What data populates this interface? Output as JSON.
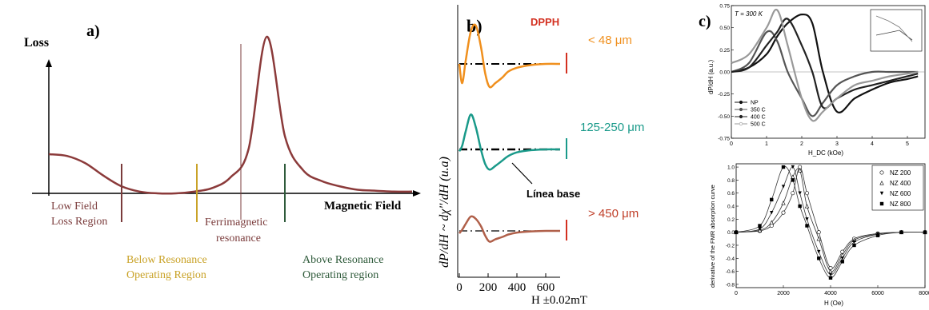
{
  "panel_a": {
    "label": "a)",
    "y_axis_label": "Loss",
    "x_axis_label": "Magnetic Field",
    "regions": {
      "low_field": [
        "Low Field",
        "Loss Region"
      ],
      "ferri": [
        "Ferrimagnetic",
        "resonance"
      ],
      "below": [
        "Below Resonance",
        "Operating Region"
      ],
      "above": [
        "Above Resonance",
        "Operating region"
      ]
    },
    "colors": {
      "curve": "#8b3a3a",
      "low_field": "#7a3b3b",
      "below": "#c9a227",
      "above": "#2e5a3a",
      "ferri": "#7a3b3b"
    }
  },
  "panel_b": {
    "label": "b)",
    "reference": "DPPH",
    "x_axis_label": "H ±0.02mT",
    "y_axis_label": "dP/dH ~ dχ''/dH (u.a)",
    "baseline_label": "Línea base",
    "x_ticks": [
      "0",
      "200",
      "400",
      "600"
    ],
    "colors": {
      "s1": "#f0901e",
      "s2": "#1a9a8a",
      "s3": "#b0604a",
      "dpph": "#d33020"
    }
  },
  "panel_c": {
    "label": "c)"
  },
  "chart_data": [
    {
      "type": "line",
      "title": "",
      "xlabel": "Magnetic Field",
      "ylabel": "Loss",
      "x": [
        0.0,
        0.05,
        0.1,
        0.15,
        0.2,
        0.25,
        0.3,
        0.35,
        0.4,
        0.45,
        0.5,
        0.55,
        0.6,
        0.65,
        0.7,
        0.75,
        0.8,
        0.85,
        0.9,
        0.95,
        1.0
      ],
      "series": [
        {
          "values": [
            0.22,
            0.21,
            0.17,
            0.1,
            0.04,
            0.01,
            0.0,
            0.0,
            0.01,
            0.03,
            0.09,
            0.25,
            0.88,
            0.32,
            0.13,
            0.07,
            0.04,
            0.02,
            0.015,
            0.01,
            0.01
          ]
        }
      ]
    },
    {
      "type": "line",
      "title": "",
      "xlabel": "H ±0.02mT",
      "ylabel": "dP/dH ~ dχ''/dH (u.a)",
      "xlim": [
        0,
        700
      ],
      "x": [
        0,
        20,
        45,
        80,
        115,
        150,
        180,
        210,
        250,
        300,
        340,
        400,
        500,
        600,
        700
      ],
      "series": [
        {
          "name": "< 48 μm",
          "values": [
            0.0,
            -0.5,
            0.1,
            0.85,
            1.0,
            0.45,
            -0.25,
            -0.6,
            -0.5,
            -0.35,
            -0.2,
            -0.1,
            -0.03,
            0.0,
            0.0
          ]
        },
        {
          "name": "125-250 μm",
          "values": [
            -0.05,
            0.1,
            0.5,
            0.95,
            0.6,
            0.0,
            -0.4,
            -0.55,
            -0.45,
            -0.3,
            -0.18,
            -0.08,
            -0.02,
            0.0,
            0.0
          ]
        },
        {
          "name": "> 450 μm",
          "values": [
            -0.1,
            0.05,
            0.3,
            0.6,
            0.5,
            0.2,
            -0.2,
            -0.45,
            -0.35,
            -0.25,
            -0.15,
            -0.07,
            -0.02,
            0.0,
            0.0
          ]
        }
      ]
    },
    {
      "type": "line",
      "title": "",
      "xlabel": "H_DC (kOe)",
      "ylabel": "dP/dH (a.u.)",
      "annotation": "T = 300 K",
      "xlim": [
        0,
        5.5
      ],
      "ylim": [
        -0.75,
        0.75
      ],
      "x_ticks": [
        "0",
        "1",
        "2",
        "3",
        "4",
        "5"
      ],
      "y_ticks": [
        "0.75",
        "0.50",
        "0.25",
        "0.00",
        "-0.25",
        "-0.50",
        "-0.75"
      ],
      "x": [
        0.0,
        0.5,
        1.0,
        1.3,
        1.6,
        2.0,
        2.3,
        2.6,
        3.0,
        3.5,
        4.0,
        4.5,
        5.0,
        5.3
      ],
      "series": [
        {
          "name": "NP",
          "values": [
            0.0,
            0.05,
            0.2,
            0.4,
            0.55,
            0.65,
            0.55,
            0.0,
            -0.45,
            -0.3,
            -0.2,
            -0.12,
            -0.08,
            -0.05
          ]
        },
        {
          "name": "350 C",
          "values": [
            0.0,
            0.1,
            0.45,
            0.35,
            0.0,
            -0.3,
            -0.5,
            -0.35,
            -0.15,
            -0.05,
            0.0,
            0.0,
            0.0,
            0.0
          ]
        },
        {
          "name": "400 C",
          "values": [
            0.0,
            0.05,
            0.3,
            0.45,
            0.6,
            0.3,
            0.0,
            -0.4,
            -0.3,
            -0.2,
            -0.15,
            -0.1,
            -0.05,
            -0.02
          ]
        },
        {
          "name": "500 C",
          "values": [
            0.1,
            0.2,
            0.5,
            0.7,
            0.3,
            -0.3,
            -0.55,
            -0.45,
            -0.3,
            -0.15,
            -0.1,
            -0.05,
            -0.02,
            0.0
          ]
        }
      ]
    },
    {
      "type": "line",
      "title": "",
      "xlabel": "H (Oe)",
      "ylabel": "derivative of the FMR absorption curve",
      "xlim": [
        0,
        8000
      ],
      "ylim": [
        -0.8,
        1.0
      ],
      "x_ticks": [
        "0",
        "2000",
        "4000",
        "6000",
        "8000"
      ],
      "y_ticks": [
        "1.0",
        "0.8",
        "0.6",
        "0.4",
        "0.2",
        "0.0",
        "-0.2",
        "-0.4",
        "-0.6",
        "-0.8"
      ],
      "x": [
        0,
        1000,
        1500,
        2000,
        2400,
        2700,
        3000,
        3500,
        4000,
        4500,
        5000,
        6000,
        7000,
        8000
      ],
      "series": [
        {
          "name": "NZ 200",
          "values": [
            0.0,
            0.02,
            0.1,
            0.3,
            0.6,
            1.0,
            0.6,
            0.0,
            -0.55,
            -0.3,
            -0.1,
            -0.02,
            0.0,
            0.0
          ]
        },
        {
          "name": "NZ 400",
          "values": [
            0.0,
            0.03,
            0.15,
            0.45,
            0.85,
            0.95,
            0.4,
            -0.1,
            -0.6,
            -0.35,
            -0.12,
            -0.03,
            0.0,
            0.0
          ]
        },
        {
          "name": "NZ 600",
          "values": [
            0.0,
            0.05,
            0.3,
            0.7,
            1.0,
            0.6,
            0.2,
            -0.3,
            -0.65,
            -0.4,
            -0.15,
            -0.03,
            0.0,
            0.0
          ]
        },
        {
          "name": "NZ 800",
          "values": [
            0.0,
            0.1,
            0.5,
            1.0,
            0.8,
            0.4,
            0.1,
            -0.4,
            -0.7,
            -0.45,
            -0.2,
            -0.05,
            0.0,
            0.0
          ]
        }
      ]
    }
  ]
}
